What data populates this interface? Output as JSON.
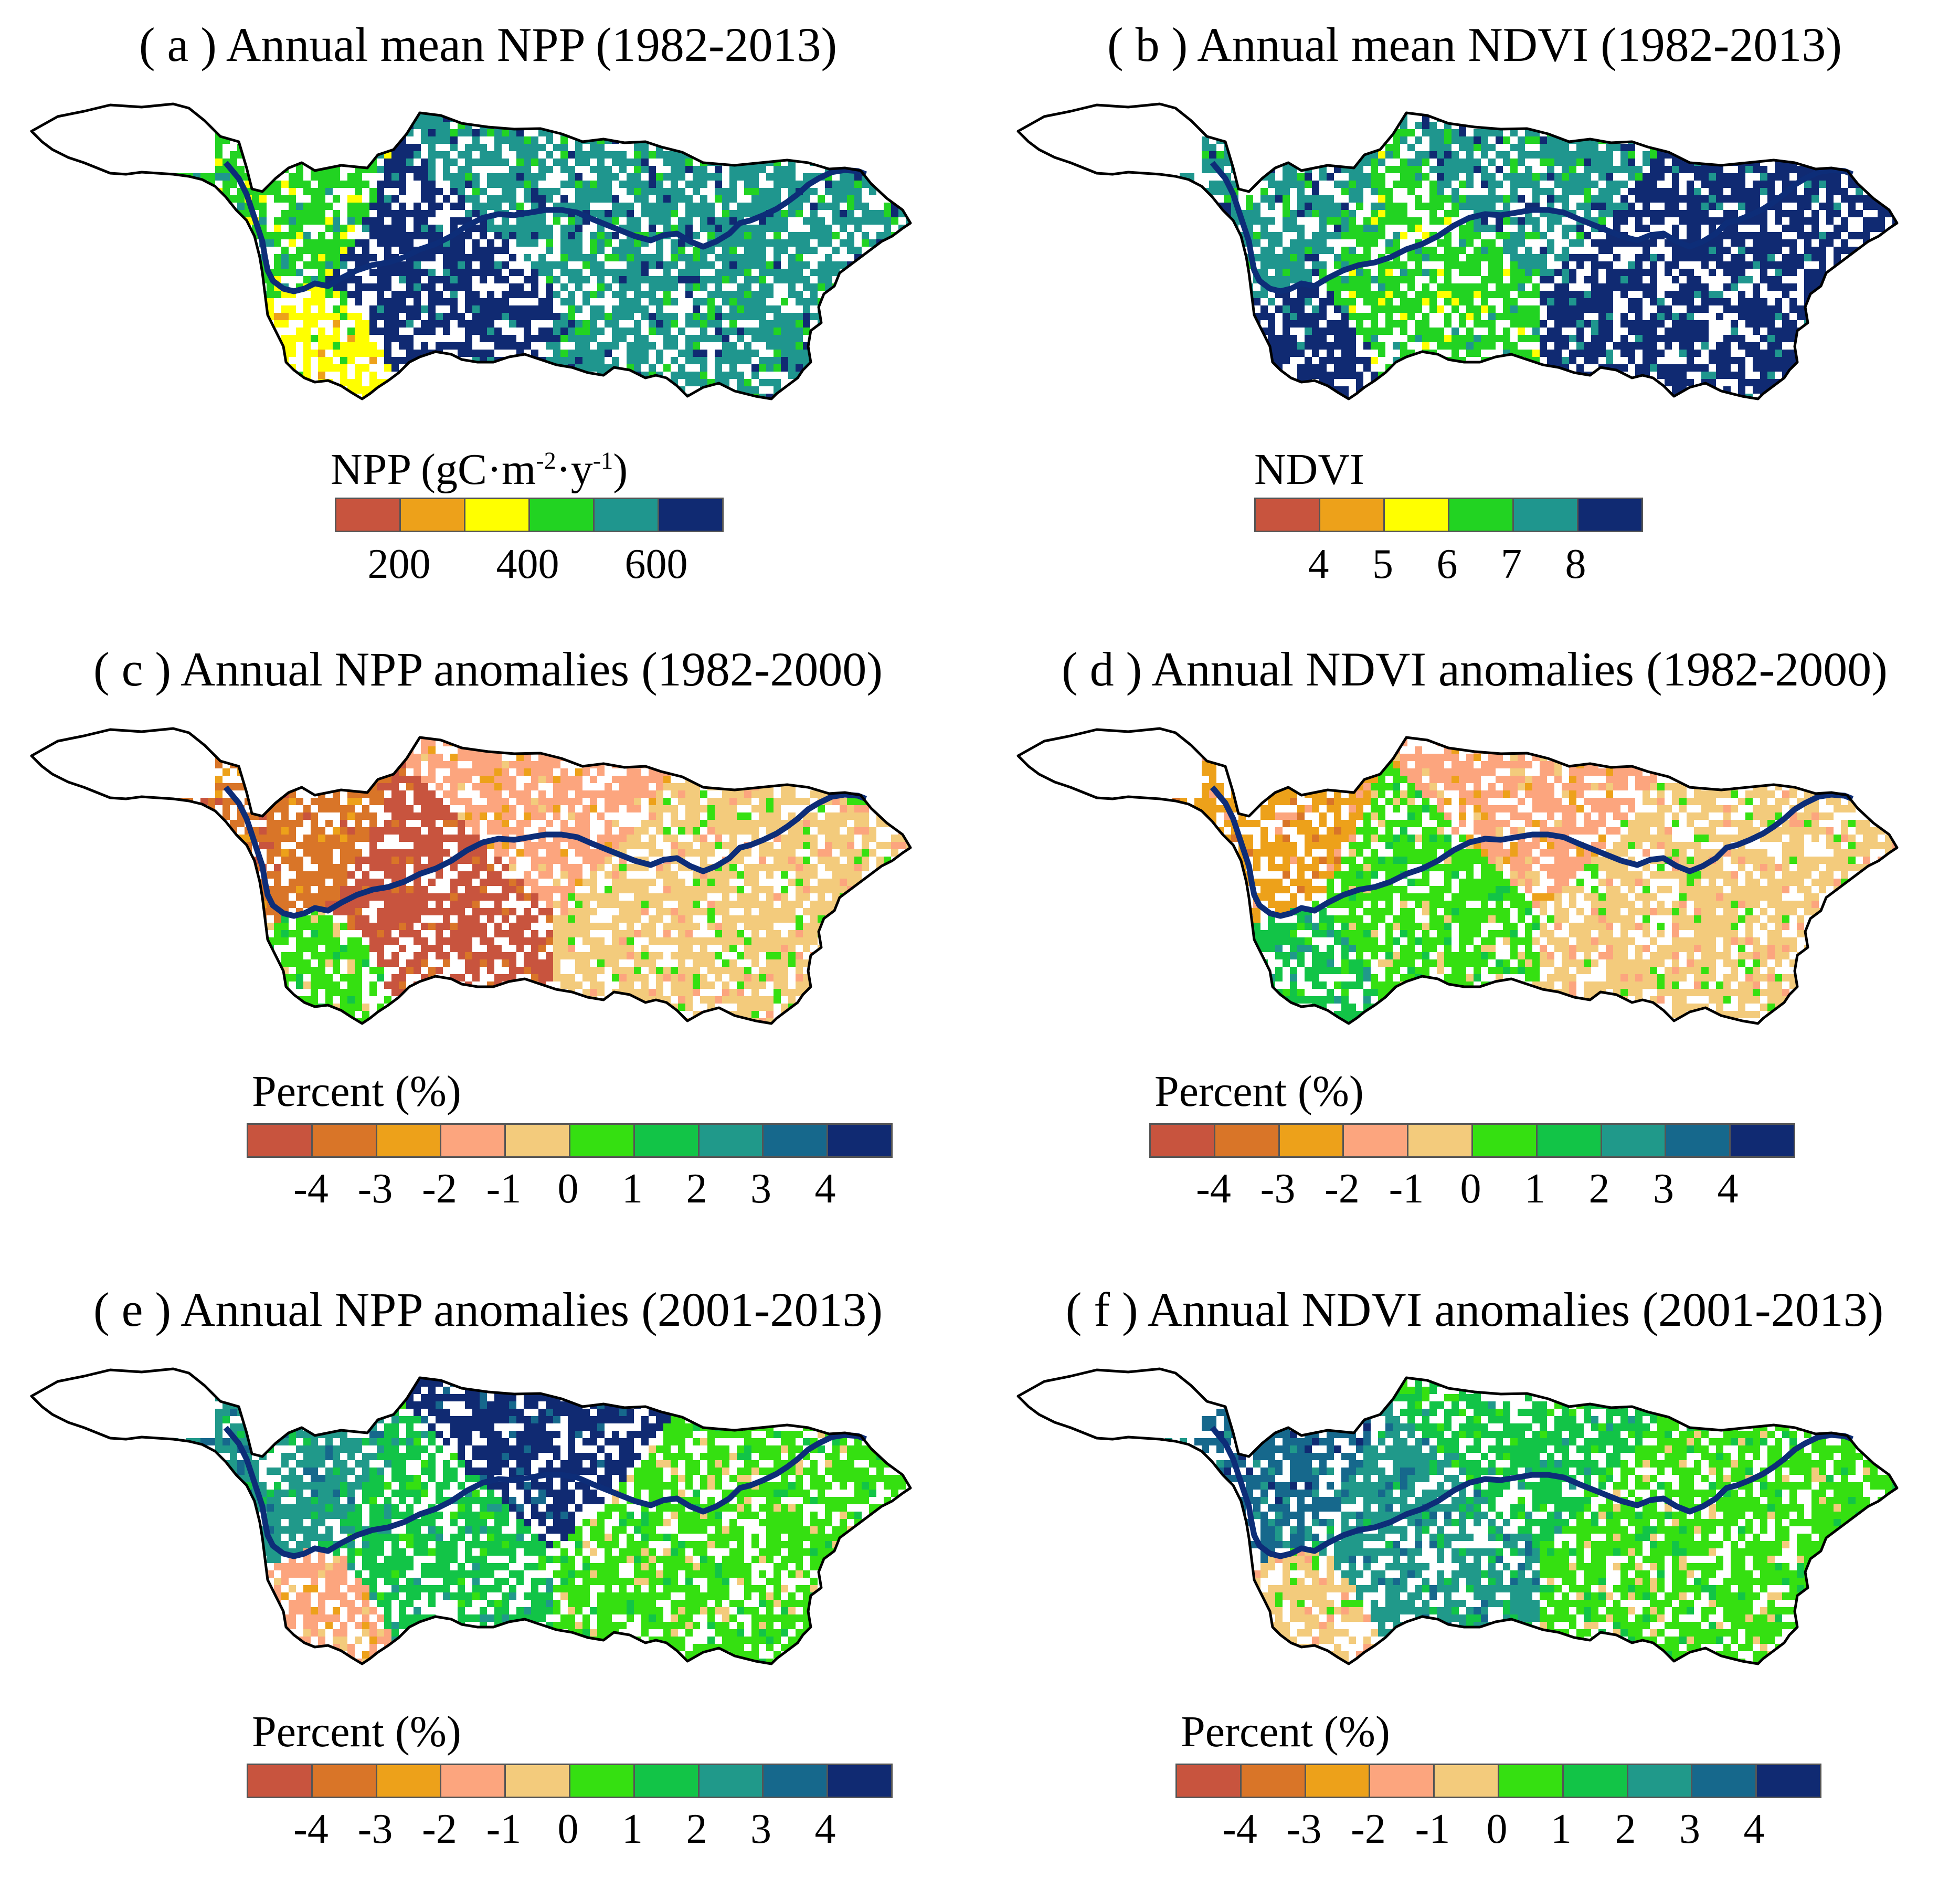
{
  "panels": [
    {
      "id": "a",
      "title": "( a )  Annual mean NPP (1982-2013)",
      "legend_title_main": "NPP (gC·m",
      "legend_title_sup1": "-2",
      "legend_title_mid": "·y",
      "legend_title_sup2": "-1",
      "legend_title_end": ")",
      "colors": [
        "#c8543e",
        "#eda11a",
        "#ffff00",
        "#22d322",
        "#1f968e",
        "#102a72"
      ],
      "ticks": [
        "200",
        "400",
        "600"
      ],
      "tick_positions": [
        1,
        3,
        5
      ],
      "dominant": [
        4,
        4,
        5,
        3,
        2
      ]
    },
    {
      "id": "b",
      "title": "( b ) Annual mean NDVI (1982-2013)",
      "legend_title": "NDVI",
      "colors": [
        "#c8543e",
        "#eda11a",
        "#ffff00",
        "#22d322",
        "#1f968e",
        "#102a72"
      ],
      "ticks": [
        "4",
        "5",
        "6",
        "7",
        "8"
      ],
      "tick_positions": [
        1,
        2,
        3,
        4,
        5
      ],
      "dominant": [
        4,
        5,
        3,
        4,
        5
      ]
    },
    {
      "id": "c",
      "title": "( c ) Annual NPP anomalies (1982-2000)",
      "legend_title": "Percent (%)",
      "colors": [
        "#c8543e",
        "#d97528",
        "#eda11a",
        "#fca57e",
        "#f3cb7c",
        "#35e011",
        "#12c447",
        "#20998a",
        "#16688c",
        "#102a72"
      ],
      "ticks": [
        "-4",
        "-3",
        "-2",
        "-1",
        "0",
        "1",
        "2",
        "3",
        "4"
      ],
      "tick_positions": [
        1,
        2,
        3,
        4,
        5,
        6,
        7,
        8,
        9
      ],
      "dominant": [
        3,
        4,
        0,
        1,
        5
      ]
    },
    {
      "id": "d",
      "title": "( d ) Annual NDVI anomalies (1982-2000)",
      "legend_title": "Percent (%)",
      "colors": [
        "#c8543e",
        "#d97528",
        "#eda11a",
        "#fca57e",
        "#f3cb7c",
        "#35e011",
        "#12c447",
        "#20998a",
        "#16688c",
        "#102a72"
      ],
      "ticks": [
        "-4",
        "-3",
        "-2",
        "-1",
        "0",
        "1",
        "2",
        "3",
        "4"
      ],
      "tick_positions": [
        1,
        2,
        3,
        4,
        5,
        6,
        7,
        8,
        9
      ],
      "dominant": [
        3,
        4,
        5,
        2,
        6
      ]
    },
    {
      "id": "e",
      "title": "( e ) Annual NPP anomalies (2001-2013)",
      "legend_title": "Percent (%)",
      "colors": [
        "#c8543e",
        "#d97528",
        "#eda11a",
        "#fca57e",
        "#f3cb7c",
        "#35e011",
        "#12c447",
        "#20998a",
        "#16688c",
        "#102a72"
      ],
      "ticks": [
        "-4",
        "-3",
        "-2",
        "-1",
        "0",
        "1",
        "2",
        "3",
        "4"
      ],
      "tick_positions": [
        1,
        2,
        3,
        4,
        5,
        6,
        7,
        8,
        9
      ],
      "dominant": [
        9,
        5,
        6,
        7,
        3
      ]
    },
    {
      "id": "f",
      "title": "( f ) Annual NDVI anomalies (2001-2013)",
      "legend_title": "Percent (%)",
      "colors": [
        "#c8543e",
        "#d97528",
        "#eda11a",
        "#fca57e",
        "#f3cb7c",
        "#35e011",
        "#12c447",
        "#20998a",
        "#16688c",
        "#102a72"
      ],
      "ticks": [
        "-4",
        "-3",
        "-2",
        "-1",
        "0",
        "1",
        "2",
        "3",
        "4"
      ],
      "tick_positions": [
        1,
        2,
        3,
        4,
        5,
        6,
        7,
        8,
        9
      ],
      "dominant": [
        6,
        5,
        7,
        8,
        4
      ]
    }
  ],
  "river_color": "#0d2d78",
  "outline_color": "#000000"
}
